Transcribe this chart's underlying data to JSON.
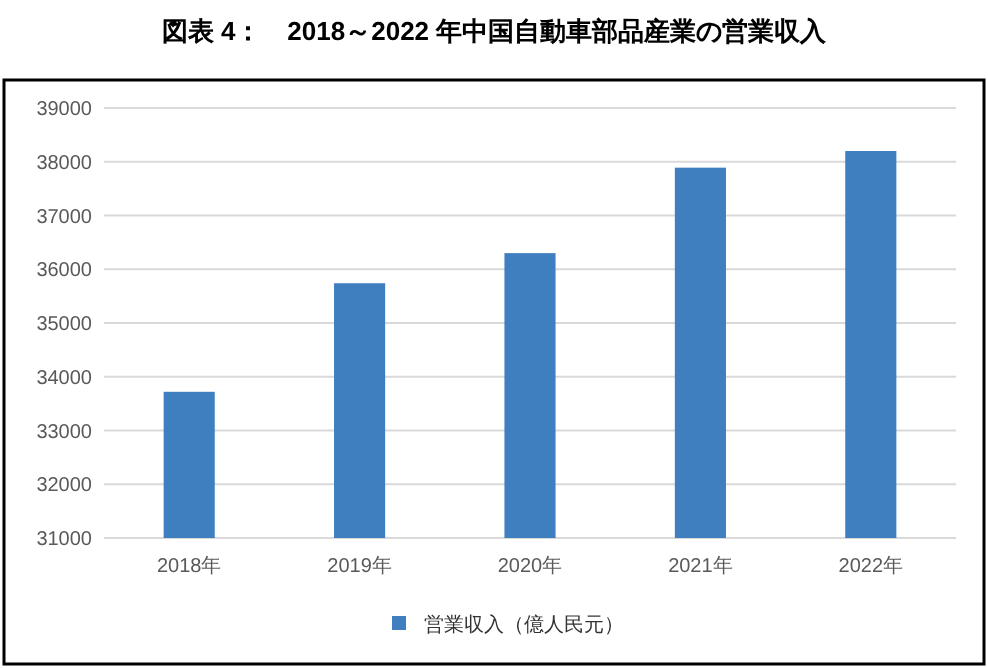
{
  "chart_data": {
    "type": "bar",
    "title": "図表 4：　2018～2022 年中国自動車部品産業の営業収入",
    "categories": [
      "2018年",
      "2019年",
      "2020年",
      "2021年",
      "2022年"
    ],
    "series": [
      {
        "name": "営業収入（億人民元）",
        "color": "#3f7fc0",
        "values": [
          33720,
          35740,
          36300,
          37890,
          38200
        ]
      }
    ],
    "ylim": [
      31000,
      39000
    ],
    "yticks": [
      31000,
      32000,
      33000,
      34000,
      35000,
      36000,
      37000,
      38000,
      39000
    ],
    "grid": "y",
    "legend": "bottom"
  }
}
